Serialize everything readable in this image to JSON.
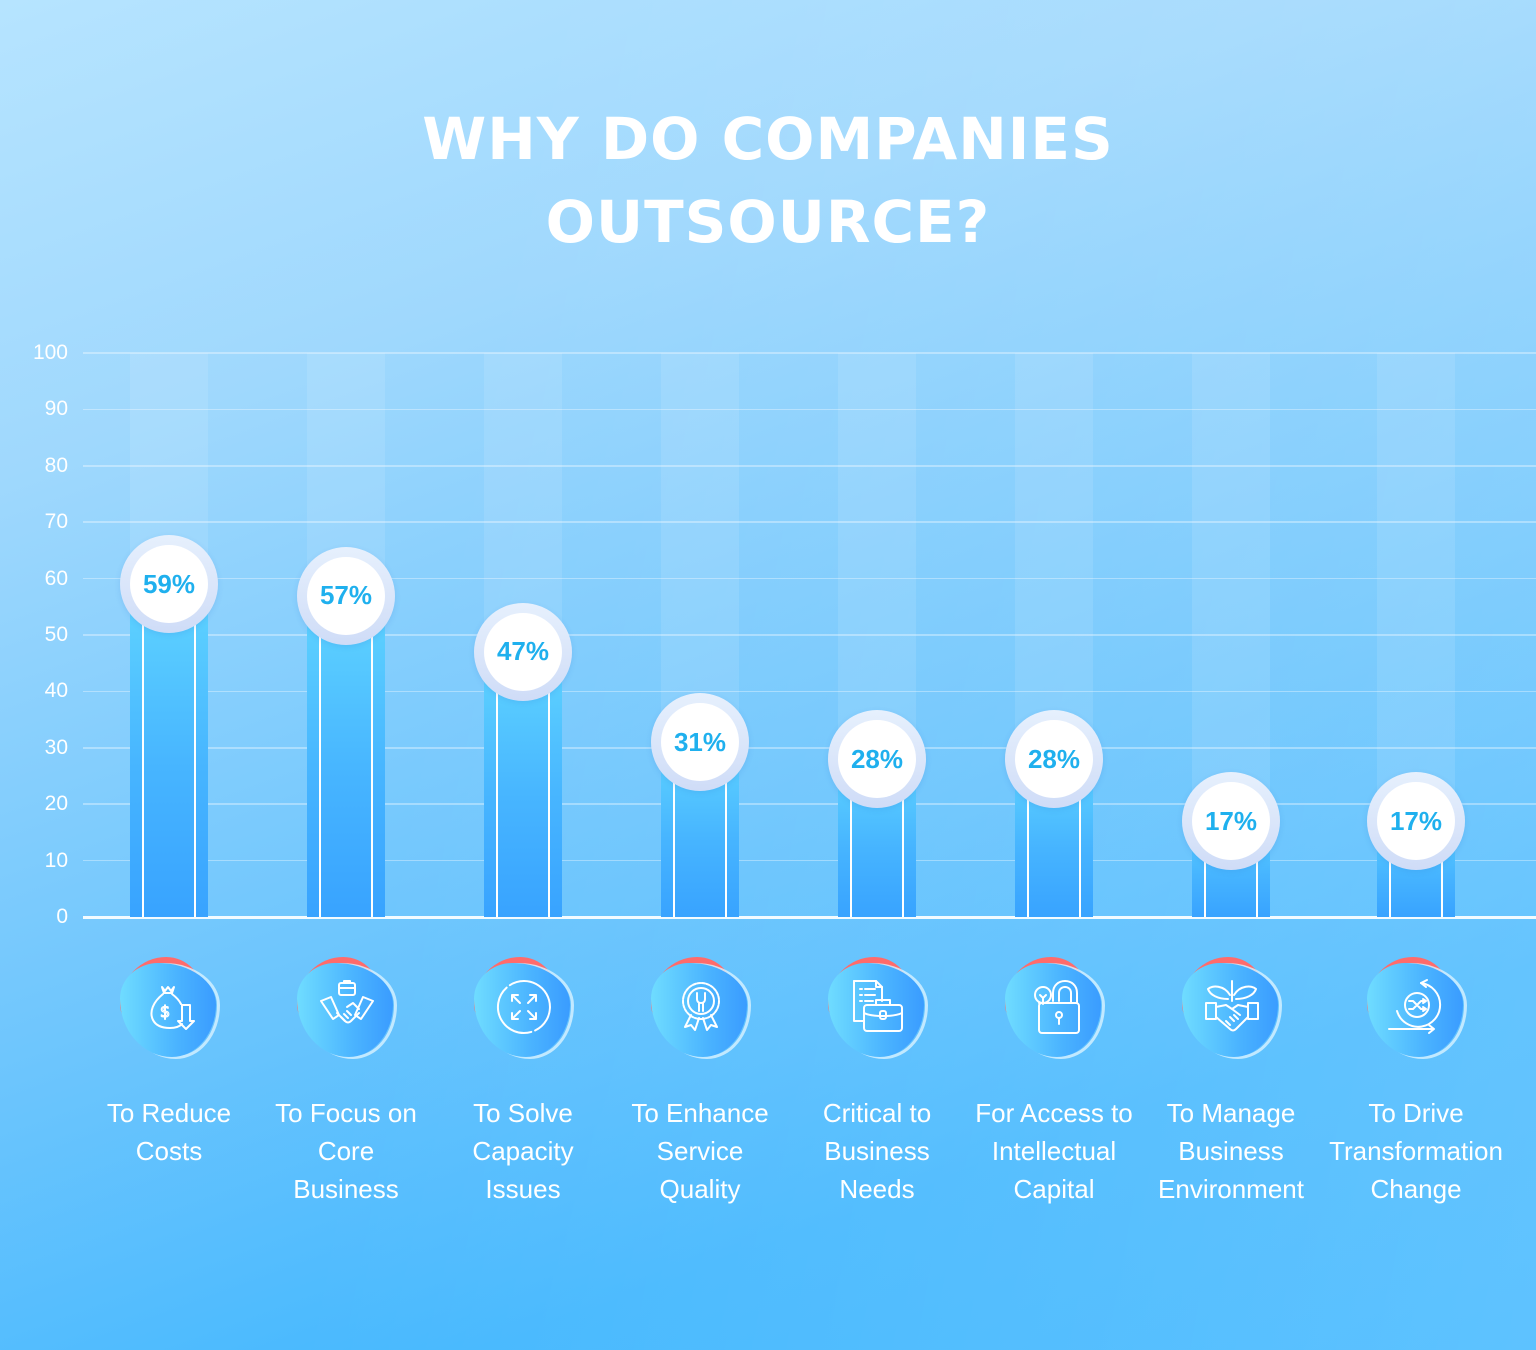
{
  "title": {
    "line1": "WHY DO COMPANIES",
    "line2": "OUTSOURCE?"
  },
  "colors": {
    "bar_top": "#60d5ff",
    "bar_bottom": "#38a3ff",
    "value_text": "#1fb0ee",
    "icon_accent": "#ff6b6b",
    "text": "#ffffff"
  },
  "y_axis": {
    "ticks": [
      "100",
      "90",
      "80",
      "70",
      "60",
      "50",
      "40",
      "30",
      "20",
      "10",
      "0"
    ]
  },
  "bars": [
    {
      "value": "59%",
      "label": [
        "To Reduce",
        "Costs"
      ],
      "icon": "money-bag-down-icon"
    },
    {
      "value": "57%",
      "label": [
        "To Focus on",
        "Core",
        "Business"
      ],
      "icon": "handshake-briefcase-icon"
    },
    {
      "value": "47%",
      "label": [
        "To Solve",
        "Capacity",
        "Issues"
      ],
      "icon": "expand-arrows-icon"
    },
    {
      "value": "31%",
      "label": [
        "To Enhance",
        "Service",
        "Quality"
      ],
      "icon": "quality-badge-wrench-icon"
    },
    {
      "value": "28%",
      "label": [
        "Critical to",
        "Business",
        "Needs"
      ],
      "icon": "document-briefcase-icon"
    },
    {
      "value": "28%",
      "label": [
        "For Access to",
        "Intellectual",
        "Capital"
      ],
      "icon": "lightbulb-lock-icon"
    },
    {
      "value": "17%",
      "label": [
        "To Manage",
        "Business",
        "Environment"
      ],
      "icon": "handshake-plant-icon"
    },
    {
      "value": "17%",
      "label": [
        "To Drive",
        "Transformation",
        "Change"
      ],
      "icon": "shuffle-cycle-icon"
    }
  ],
  "chart_data": {
    "type": "bar",
    "title": "WHY DO COMPANIES OUTSOURCE?",
    "categories": [
      "To Reduce Costs",
      "To Focus on Core Business",
      "To Solve Capacity Issues",
      "To Enhance Service Quality",
      "Critical to Business Needs",
      "For Access to Intellectual Capital",
      "To Manage Business Environment",
      "To Drive Transformation Change"
    ],
    "values": [
      59,
      57,
      47,
      31,
      28,
      28,
      17,
      17
    ],
    "value_labels": [
      "59%",
      "57%",
      "47%",
      "31%",
      "28%",
      "28%",
      "17%",
      "17%"
    ],
    "xlabel": "",
    "ylabel": "",
    "ylim": [
      0,
      100
    ],
    "yticks": [
      0,
      10,
      20,
      30,
      40,
      50,
      60,
      70,
      80,
      90,
      100
    ],
    "grid": true,
    "legend": "none"
  }
}
